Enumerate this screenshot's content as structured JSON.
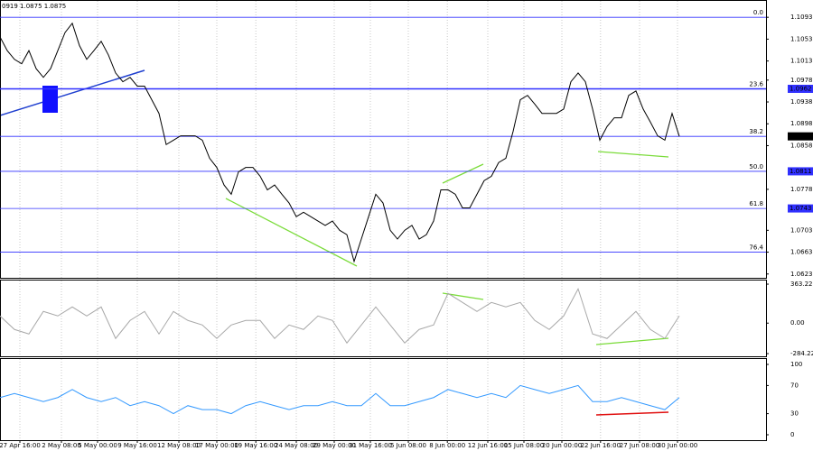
{
  "chart_data": [
    {
      "type": "line",
      "header": "0919 1.0875 1.0875",
      "series": [
        {
          "name": "Price",
          "color": "#000000",
          "x": [
            0,
            1,
            2,
            3,
            4,
            5,
            6,
            7,
            8,
            9,
            10,
            11,
            12,
            13,
            14,
            15,
            16,
            17,
            18,
            19,
            20,
            21,
            22,
            23,
            24,
            25,
            26,
            27,
            28,
            29,
            30,
            31,
            32,
            33,
            34,
            35,
            36,
            37,
            38,
            39,
            40,
            41,
            42,
            43,
            44,
            45,
            46,
            47,
            48,
            49,
            50,
            51,
            52,
            53,
            54,
            55,
            56,
            57,
            58,
            59,
            60,
            61,
            62,
            63,
            64,
            65,
            66,
            67,
            68,
            69,
            70,
            71,
            72,
            73,
            74,
            75,
            76,
            77,
            78,
            79,
            80,
            81,
            82,
            83,
            84,
            85,
            86,
            87,
            88,
            89,
            90,
            91,
            92,
            93,
            94
          ],
          "values": [
            1.1057,
            1.1032,
            1.1016,
            1.1008,
            1.1032,
            1.0999,
            1.0983,
            1.0999,
            1.1032,
            1.1065,
            1.1082,
            1.1041,
            1.1016,
            1.1032,
            1.1049,
            1.1024,
            1.0991,
            1.0975,
            1.0983,
            1.0967,
            1.0967,
            1.0942,
            1.0917,
            1.086,
            1.0868,
            1.0876,
            1.0876,
            1.0876,
            1.0868,
            1.0835,
            1.0818,
            1.0786,
            1.0769,
            1.081,
            1.0818,
            1.0818,
            1.0802,
            1.0777,
            1.0786,
            1.0769,
            1.0753,
            1.0728,
            1.0736,
            1.0728,
            1.072,
            1.0712,
            1.072,
            1.0703,
            1.0695,
            1.0646,
            1.0687,
            1.0728,
            1.0769,
            1.0753,
            1.0703,
            1.0687,
            1.0703,
            1.0712,
            1.0687,
            1.0695,
            1.072,
            1.0777,
            1.0777,
            1.0769,
            1.0744,
            1.0744,
            1.0769,
            1.0794,
            1.0802,
            1.0827,
            1.0835,
            1.0884,
            1.0942,
            1.095,
            1.0934,
            1.0917,
            1.0917,
            1.0917,
            1.0925,
            1.0975,
            1.0991,
            1.0975,
            1.0925,
            1.0868,
            1.0893,
            1.0909,
            1.0909,
            1.095,
            1.0958,
            1.0925,
            1.0901,
            1.0876,
            1.0868,
            1.0917,
            1.0875
          ]
        }
      ],
      "xlim": [
        0,
        106
      ],
      "ylim": [
        1.0616,
        1.1123
      ],
      "yticks": [
        1.1093,
        1.1053,
        1.1013,
        1.0978,
        1.0938,
        1.0898,
        1.0858,
        1.0778,
        1.0703,
        1.0663,
        1.0623
      ],
      "fib_levels": [
        {
          "value": 1.1093,
          "label": "0.0"
        },
        {
          "value": 1.0962,
          "label": "23.6"
        },
        {
          "value": 1.0875,
          "label": "38.2"
        },
        {
          "value": 1.0811,
          "label": "50.0"
        },
        {
          "value": 1.0743,
          "label": "61.8"
        },
        {
          "value": 1.0663,
          "label": "76.4"
        }
      ],
      "level_ticks": [
        1.0962,
        1.0811,
        1.0743
      ],
      "last_price": 1.0875,
      "level_color": "#3030ff"
    },
    {
      "type": "line",
      "series": [
        {
          "name": "CCI",
          "color": "#a8a8a8",
          "x": [
            0,
            2,
            4,
            6,
            8,
            10,
            12,
            14,
            16,
            18,
            20,
            22,
            24,
            26,
            28,
            30,
            32,
            34,
            36,
            38,
            40,
            42,
            44,
            46,
            48,
            50,
            52,
            54,
            56,
            58,
            60,
            62,
            64,
            66,
            68,
            70,
            72,
            74,
            76,
            78,
            80,
            82,
            84,
            86,
            88,
            90,
            92,
            94
          ],
          "values": [
            67,
            -59,
            -101,
            109,
            67,
            151,
            67,
            151,
            -143,
            25,
            109,
            -101,
            109,
            25,
            -17,
            -143,
            -17,
            25,
            25,
            -143,
            -17,
            -59,
            67,
            25,
            -185,
            -17,
            151,
            -17,
            -185,
            -59,
            -17,
            277,
            193,
            109,
            193,
            151,
            193,
            25,
            -59,
            67,
            319,
            -101,
            -143,
            -17,
            109,
            -59,
            -143,
            67
          ]
        }
      ],
      "xlim": [
        0,
        106
      ],
      "ylim": [
        -309,
        397
      ],
      "yticks": [
        363.2239,
        {
          "value": 0,
          "label": "0.00"
        },
        -284.224
      ]
    },
    {
      "type": "line",
      "series": [
        {
          "name": "RSI",
          "color": "#3399ff",
          "x": [
            0,
            2,
            4,
            6,
            8,
            10,
            12,
            14,
            16,
            18,
            20,
            22,
            24,
            26,
            28,
            30,
            32,
            34,
            36,
            38,
            40,
            42,
            44,
            46,
            48,
            50,
            52,
            54,
            56,
            58,
            60,
            62,
            64,
            66,
            68,
            70,
            72,
            74,
            76,
            78,
            80,
            82,
            84,
            86,
            88,
            90,
            92,
            94
          ],
          "values": [
            52.9,
            58.6,
            52.9,
            47.1,
            52.9,
            64.3,
            52.9,
            47.1,
            52.9,
            41.4,
            47.1,
            41.4,
            30,
            41.4,
            35.7,
            35.7,
            30,
            41.4,
            47.1,
            41.4,
            35.7,
            41.4,
            41.4,
            47.1,
            41.4,
            41.4,
            58.6,
            41.4,
            41.4,
            47.1,
            52.9,
            64.3,
            58.6,
            52.9,
            58.6,
            52.9,
            70,
            64.3,
            58.6,
            64.3,
            70,
            47.1,
            47.1,
            52.9,
            47.1,
            41.4,
            35.7,
            52.9
          ]
        }
      ],
      "xlim": [
        0,
        106
      ],
      "ylim": [
        -7.7,
        107.7
      ],
      "yticks": [
        100,
        70,
        30,
        0
      ],
      "xticks": [
        {
          "value": 2.75,
          "label": "27 Apr 16:00"
        },
        {
          "value": 8.5,
          "label": "2 May 08:00"
        },
        {
          "value": 13.5,
          "label": "5 May 00:00"
        },
        {
          "value": 19,
          "label": "9 May 16:00"
        },
        {
          "value": 24.75,
          "label": "12 May 08:00"
        },
        {
          "value": 30,
          "label": "17 May 00:00"
        },
        {
          "value": 35.4,
          "label": "19 May 16:00"
        },
        {
          "value": 41,
          "label": "24 May 08:00"
        },
        {
          "value": 46.25,
          "label": "29 May 00:00"
        },
        {
          "value": 51.25,
          "label": "31 May 16:00"
        },
        {
          "value": 56.5,
          "label": "5 Jun 08:00"
        },
        {
          "value": 61.9,
          "label": "8 Jun 00:00"
        },
        {
          "value": 67.5,
          "label": "12 Jun 16:00"
        },
        {
          "value": 72.5,
          "label": "15 Jun 08:00"
        },
        {
          "value": 77.75,
          "label": "20 Jun 00:00"
        },
        {
          "value": 83.1,
          "label": "22 Jun 16:00"
        },
        {
          "value": 88.5,
          "label": "27 Jun 08:00"
        },
        {
          "value": 93.75,
          "label": "30 Jun 00:00"
        }
      ]
    }
  ]
}
